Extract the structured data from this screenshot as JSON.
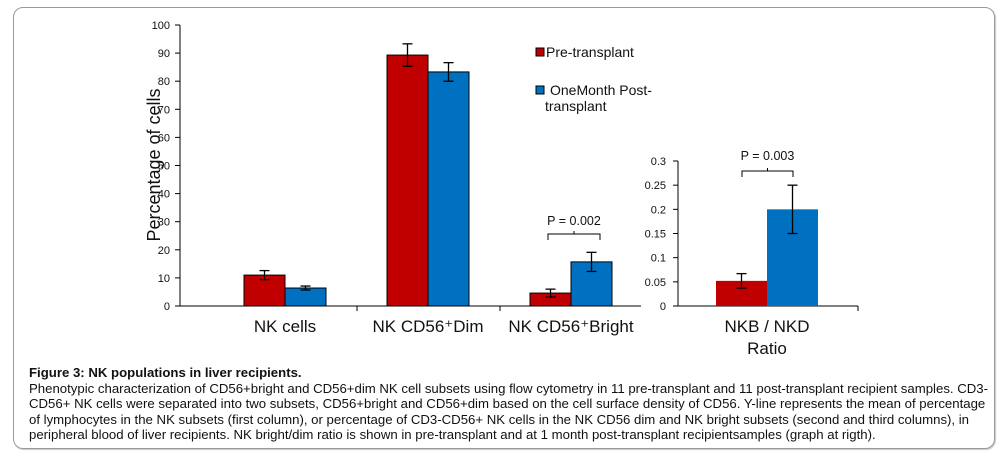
{
  "chart_data": [
    {
      "type": "bar",
      "ylabel": "Percentage of cells",
      "ylim": [
        0,
        100
      ],
      "yticks": [
        "0",
        "10",
        "20",
        "30",
        "40",
        "50",
        "60",
        "70",
        "80",
        "90",
        "100"
      ],
      "categories": [
        "NK cells",
        "NK CD56⁺Dim",
        "NK CD56⁺Bright"
      ],
      "series": [
        {
          "name": "Pre-transplant",
          "color": "#c00000",
          "values": [
            11.0,
            89.3,
            4.6
          ],
          "errors": [
            1.6,
            4.0,
            1.4
          ]
        },
        {
          "name": "OneMonth Post-transplant",
          "color": "#0070c0",
          "values": [
            6.4,
            83.3,
            15.7
          ],
          "errors": [
            0.7,
            3.3,
            3.4
          ]
        }
      ],
      "annotations": [
        {
          "category": "NK CD56⁺Bright",
          "text": "P = 0.002"
        }
      ],
      "legend": {
        "position": "top-right",
        "entries": [
          "Pre-transplant",
          "OneMonth Post-",
          "transplant"
        ]
      },
      "grid": false
    },
    {
      "type": "bar",
      "ylim": [
        0,
        0.3
      ],
      "yticks": [
        "0",
        "0.05",
        "0.1",
        "0.15",
        "0.2",
        "0.25",
        "0.3"
      ],
      "categories": [
        "NKB / NKD Ratio"
      ],
      "category_lines": [
        "NKB / NKD",
        "Ratio"
      ],
      "series": [
        {
          "name": "Pre-transplant",
          "color": "#c00000",
          "values": [
            0.052
          ],
          "errors": [
            0.015
          ]
        },
        {
          "name": "OneMonth Post-transplant",
          "color": "#0070c0",
          "values": [
            0.2
          ],
          "errors": [
            0.05
          ]
        }
      ],
      "annotations": [
        {
          "category": "NKB / NKD Ratio",
          "text": "P = 0.003"
        }
      ],
      "grid": false
    }
  ],
  "caption": {
    "title": "Figure 3: NK populations in liver recipients.",
    "body": "Phenotypic characterization of CD56+bright and CD56+dim NK cell subsets using flow cytometry in 11 pre-transplant and 11 post-transplant recipient samples. CD3-CD56+ NK cells were separated into two subsets, CD56+bright and CD56+dim based on the cell surface density of CD56.  Y-line represents the mean of percentage of lymphocytes in the NK subsets (first column), or percentage of CD3-CD56+ NK cells in the NK CD56 dim and NK bright subsets (second and third columns), in peripheral blood of liver recipients.  NK bright/dim ratio is shown in pre-transplant and at 1 month post-transplant recipientsamples (graph at rigth)."
  }
}
